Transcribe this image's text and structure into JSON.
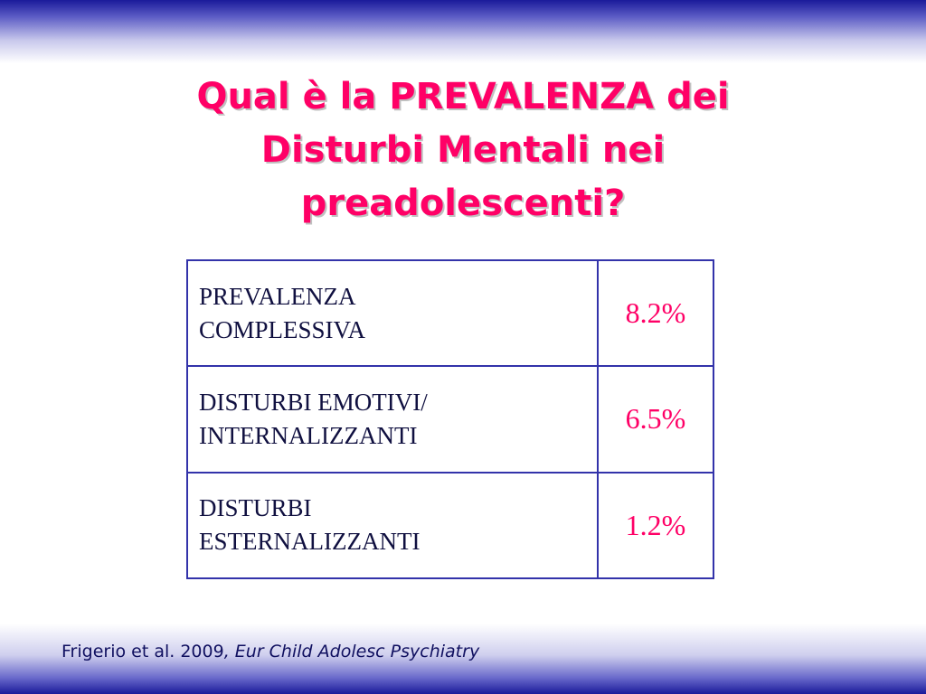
{
  "slide": {
    "title_lines": [
      "Qual è la PREVALENZA dei",
      "Disturbi Mentali nei",
      "preadolescenti?"
    ],
    "table": {
      "rows": [
        {
          "label_lines": [
            "PREVALENZA",
            "COMPLESSIVA"
          ],
          "value": "8.2%"
        },
        {
          "label_lines": [
            "DISTURBI EMOTIVI/",
            "INTERNALIZZANTI"
          ],
          "value": "6.5%"
        },
        {
          "label_lines": [
            "DISTURBI",
            "ESTERNALIZZANTI"
          ],
          "value": "1.2%"
        }
      ]
    },
    "citation": {
      "authors": "Frigerio et al. 2009",
      "journal": ", Eur Child Adolesc Psychiatry"
    }
  },
  "colors": {
    "title": "#ff0066",
    "value": "#ff0066",
    "border": "#3333aa",
    "band": "#1a1a9a"
  }
}
